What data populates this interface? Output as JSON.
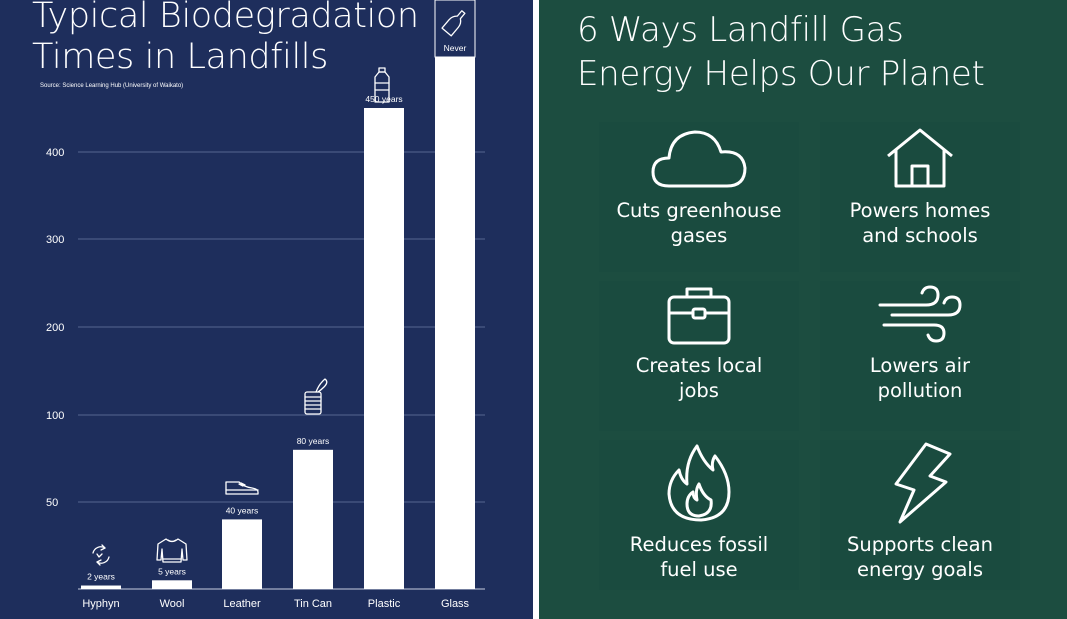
{
  "left_panel": {
    "title_line1": "Typical Biodegradation",
    "title_line2": "Times in Landfills",
    "source": "Source: Science Learning Hub (University of Waikato)"
  },
  "right_panel": {
    "title_line1": "6 Ways Landfill Gas",
    "title_line2": "Energy Helps Our Planet",
    "cards": [
      {
        "icon": "cloud-icon",
        "line1": "Cuts greenhouse",
        "line2": "gases"
      },
      {
        "icon": "house-icon",
        "line1": "Powers homes",
        "line2": "and schools"
      },
      {
        "icon": "briefcase-icon",
        "line1": "Creates local",
        "line2": "jobs"
      },
      {
        "icon": "wind-icon",
        "line1": "Lowers air",
        "line2": "pollution"
      },
      {
        "icon": "flame-icon",
        "line1": "Reduces fossil",
        "line2": "fuel use"
      },
      {
        "icon": "lightning-icon",
        "line1": "Supports clean",
        "line2": "energy goals"
      }
    ]
  },
  "chart_data": {
    "type": "bar",
    "title": "Typical Biodegradation Times in Landfills",
    "categories": [
      "Hyphyn",
      "Wool",
      "Leather",
      "Tin Can",
      "Plastic",
      "Glass"
    ],
    "values": [
      2,
      5,
      40,
      80,
      450,
      null
    ],
    "data_labels": [
      "2 years",
      "5 years",
      "40 years",
      "80 years",
      "450 years",
      "Never"
    ],
    "icons": [
      "recycle-icon",
      "sweater-icon",
      "shoe-icon",
      "can-icon",
      "bottle-icon",
      "glass-bottle-icon"
    ],
    "yticks": [
      50,
      100,
      200,
      300,
      400
    ],
    "ylim": [
      0,
      450
    ],
    "grid": true,
    "bar_color": "#ffffff",
    "background": "#1e2e5c"
  }
}
